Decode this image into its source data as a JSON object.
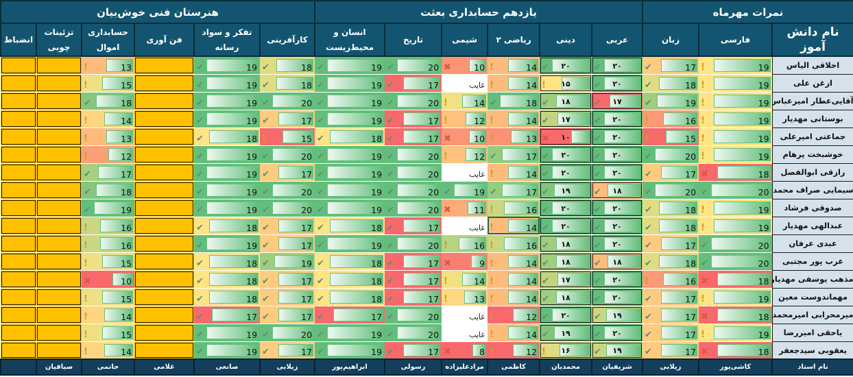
{
  "groups": [
    {
      "label": "نمرات مهرماه",
      "span": 3
    },
    {
      "label": "یازدهم حسابداری بعثت",
      "span": 6
    },
    {
      "label": "هنرستان فنی خوش‌بیان",
      "span": 6
    }
  ],
  "name_header": "نام دانش آموز",
  "columns": [
    {
      "label": "فارسی",
      "check_min": 20,
      "warn_min": 19
    },
    {
      "label": "زبان",
      "check_min": 17,
      "warn_min": 12
    },
    {
      "label": "عربی",
      "check_min": 17,
      "warn_min": 12,
      "persian_digits": true
    },
    {
      "label": "دینی",
      "check_min": 17,
      "warn_min": 12,
      "persian_digits": true
    },
    {
      "label": "ریاضی ۲",
      "check_min": 17,
      "warn_min": 12
    },
    {
      "label": "شیمی",
      "check_min": 17,
      "warn_min": 12
    },
    {
      "label": "تاریخ",
      "check_min": 17,
      "warn_min": 12
    },
    {
      "label": "انسان و\nمحیط‌زیست",
      "check_min": 17,
      "warn_min": 12
    },
    {
      "label": "کارآفرینی",
      "check_min": 17,
      "warn_min": 12
    },
    {
      "label": "تفکر و سواد رسانه",
      "check_min": 17,
      "warn_min": 12
    },
    {
      "label": "فن آوری",
      "empty": true
    },
    {
      "label": "حسابداری\nاموال",
      "check_min": 17,
      "warn_min": 12
    },
    {
      "label": "تزئینات\nچوبی",
      "empty": true
    },
    {
      "label": "انضباط",
      "empty": true
    }
  ],
  "students": [
    {
      "name": "اخلاقی الیاس",
      "grades": [
        "19",
        "17",
        "۲۰",
        "۲۰",
        "14",
        "10",
        "20",
        "19",
        "18",
        "19",
        "",
        "13",
        "",
        ""
      ]
    },
    {
      "name": "ازغن علی",
      "grades": [
        "19",
        "18",
        "۲۰",
        "۱۵",
        "14",
        "غایب",
        "17",
        "19",
        "18",
        "19",
        "",
        "15",
        "",
        ""
      ]
    },
    {
      "name": "آقایی‌عطار امیرعباس",
      "grades": [
        "19",
        "19",
        "۱۷",
        "۱۸",
        "18",
        "14",
        "20",
        "19",
        "20",
        "19",
        "",
        "18",
        "",
        ""
      ]
    },
    {
      "name": "بوستانی مهدیار",
      "grades": [
        "19",
        "16",
        "۲۰",
        "۱۷",
        "14",
        "12",
        "17",
        "19",
        "17",
        "19",
        "",
        "14",
        "",
        ""
      ]
    },
    {
      "name": "جماعتی امیرعلی",
      "grades": [
        "19",
        "15",
        "۲۰",
        "۱۰",
        "13",
        "10",
        "17",
        "18",
        "15",
        "18",
        "",
        "13",
        "",
        ""
      ]
    },
    {
      "name": "خوشبخت پرهام",
      "grades": [
        "19",
        "20",
        "۲۰",
        "۲۰",
        "17",
        "12",
        "20",
        "19",
        "20",
        "19",
        "",
        "12",
        "",
        ""
      ]
    },
    {
      "name": "رازقی ابوالفضل",
      "grades": [
        "18",
        "17",
        "۲۰",
        "۲۰",
        "14",
        "غایب",
        "20",
        "19",
        "17",
        "19",
        "",
        "17",
        "",
        ""
      ]
    },
    {
      "name": "سیمایی صراف محمدعلی",
      "grades": [
        "20",
        "20",
        "۱۸",
        "۱۹",
        "17",
        "19",
        "20",
        "19",
        "20",
        "19",
        "",
        "18",
        "",
        ""
      ]
    },
    {
      "name": "صدوقی فرشاد",
      "grades": [
        "19",
        "18",
        "۲۰",
        "۲۰",
        "16",
        "11",
        "20",
        "19",
        "20",
        "19",
        "",
        "19",
        "",
        ""
      ]
    },
    {
      "name": "عبدالهی مهدیار",
      "grades": [
        "19",
        "18",
        "۲۰",
        "۲۰",
        "14",
        "غایب",
        "17",
        "18",
        "17",
        "18",
        "",
        "16",
        "",
        ""
      ]
    },
    {
      "name": "عبدی عرفان",
      "grades": [
        "20",
        "17",
        "۲۰",
        "۱۸",
        "16",
        "16",
        "20",
        "19",
        "17",
        "19",
        "",
        "16",
        "",
        ""
      ]
    },
    {
      "name": "عرب پور مجتبی",
      "grades": [
        "20",
        "18",
        "۱۸",
        "۱۸",
        "14",
        "9",
        "17",
        "18",
        "19",
        "18",
        "",
        "15",
        "",
        ""
      ]
    },
    {
      "name": "مذهب یوسفی مهدیار",
      "grades": [
        "18",
        "16",
        "۲۰",
        "۱۷",
        "14",
        "14",
        "17",
        "18",
        "17",
        "18",
        "",
        "10",
        "",
        ""
      ]
    },
    {
      "name": "مهماندوست معین",
      "grades": [
        "19",
        "17",
        "۲۰",
        "۱۸",
        "14",
        "13",
        "17",
        "18",
        "17",
        "18",
        "",
        "15",
        "",
        ""
      ]
    },
    {
      "name": "میرمحرابی امیرمحمد",
      "grades": [
        "18",
        "17",
        "۱۹",
        "۲۰",
        "12",
        "غایب",
        "20",
        "17",
        "17",
        "17",
        "",
        "14",
        "",
        ""
      ]
    },
    {
      "name": "یاحقی امیررضا",
      "grades": [
        "19",
        "17",
        "۲۰",
        "۱۹",
        "14",
        "غایب",
        "20",
        "19",
        "20",
        "19",
        "",
        "15",
        "",
        ""
      ]
    },
    {
      "name": "یعقوبی سیدجعفر",
      "grades": [
        "18",
        "17",
        "۱۹",
        "۱۶",
        "12",
        "8",
        "17",
        "19",
        "17",
        "19",
        "",
        "14",
        "",
        ""
      ]
    }
  ],
  "footer": {
    "label": "نام استاد",
    "teachers": [
      "کاشی‌پور",
      "زیلابی",
      "شریفیان",
      "محمدیان",
      "کاظمی",
      "مرادعلیزاده",
      "رسولی",
      "ابراهیم‌پور",
      "زیلابی",
      "صانعی",
      "غلامی",
      "حاتمی",
      "صیافیان",
      ""
    ]
  },
  "selected_cell": {
    "student": 9,
    "column": 4
  },
  "colors": {
    "header": "#135570",
    "footer": "#133f5c",
    "name_bg": "#d5e2ec",
    "high": "#63be7b",
    "mid": "#ffe484",
    "low": "#f8696b",
    "empty": "#ffc000"
  }
}
